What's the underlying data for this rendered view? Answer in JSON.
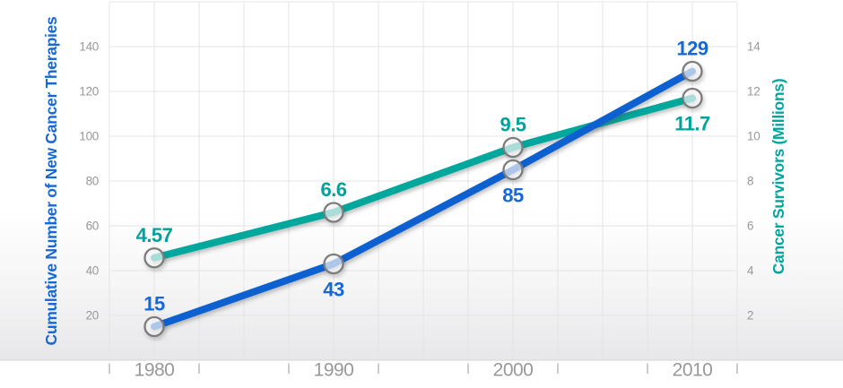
{
  "chart_data": {
    "type": "line",
    "categories": [
      "1980",
      "1990",
      "2000",
      "2010"
    ],
    "y_left": {
      "title": "Cumulative Number of New Cancer Therapies",
      "tick_labels": [
        "140",
        "120",
        "100",
        "80",
        "60",
        "40",
        "20"
      ],
      "tick_values": [
        140,
        120,
        100,
        80,
        60,
        40,
        20
      ],
      "range": [
        0,
        160
      ],
      "title_color": "#1568d6"
    },
    "y_right": {
      "title": "Cancer Survivors (Millions)",
      "tick_labels": [
        "14",
        "12",
        "10",
        "8",
        "6",
        "4",
        "2"
      ],
      "tick_values": [
        14,
        12,
        10,
        8,
        6,
        4,
        2
      ],
      "range": [
        0,
        16
      ],
      "title_color": "#00a69e"
    },
    "series": [
      {
        "name": "Cancer Survivors (Millions)",
        "axis": "right",
        "line_color": "#02a79c",
        "label_color": "#00a29a",
        "values": [
          4.57,
          6.6,
          9.5,
          11.7
        ],
        "point_labels": [
          "4.57",
          "6.6",
          "9.5",
          "11.7"
        ],
        "label_side": [
          "above",
          "above",
          "above",
          "below"
        ]
      },
      {
        "name": "Cumulative Number of New Cancer Therapies",
        "axis": "left",
        "line_color": "#1161d0",
        "label_color": "#1568d6",
        "values": [
          15,
          43,
          85,
          129
        ],
        "point_labels": [
          "15",
          "43",
          "85",
          "129"
        ],
        "label_side": [
          "above",
          "below",
          "below",
          "above"
        ]
      }
    ],
    "grid": true,
    "legend": "none",
    "colors": {
      "grid": "#e4e4e6",
      "x_tick": "#bababd",
      "axis_text": "#98989b",
      "marker_ring": "#7b7b7e"
    }
  }
}
